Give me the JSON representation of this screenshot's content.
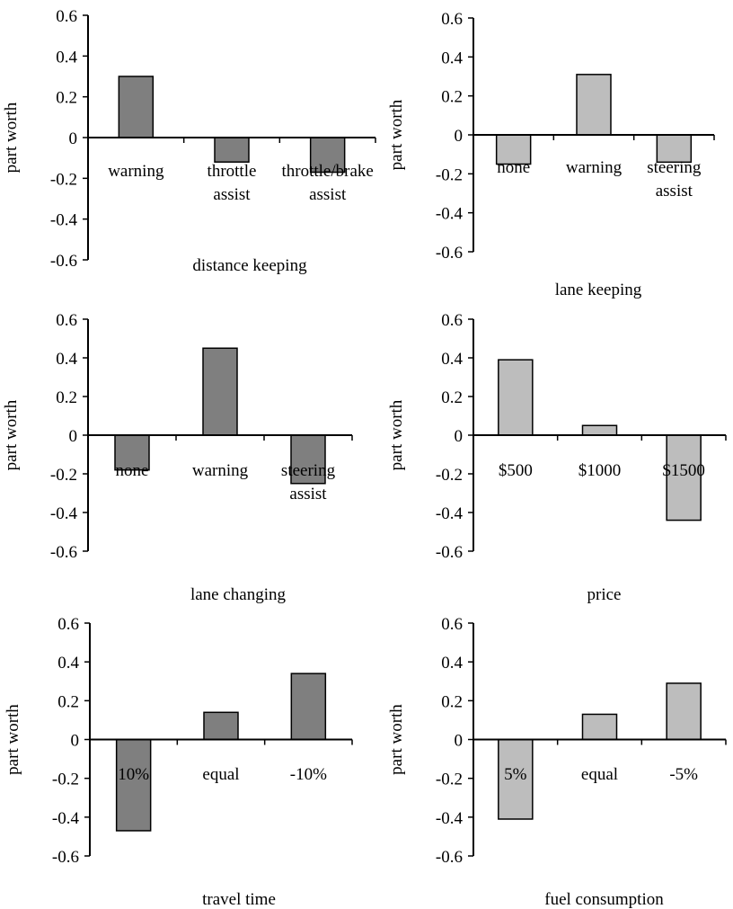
{
  "colors": {
    "bar_dark": "#7f7f7f",
    "bar_light": "#bdbdbd",
    "axis": "#000000"
  },
  "chart_data": [
    {
      "type": "bar",
      "title": "",
      "xlabel": "distance keeping",
      "ylabel": "part worth",
      "ylim": [
        -0.6,
        0.6
      ],
      "yticks": [
        "0.6",
        "0.4",
        "0.2",
        "0",
        "-0.2",
        "-0.4",
        "-0.6"
      ],
      "categories": [
        [
          "warning"
        ],
        [
          "throttle",
          "assist"
        ],
        [
          "throttle/brake",
          "assist"
        ]
      ],
      "values": [
        0.3,
        -0.12,
        -0.17
      ],
      "shade": "dark"
    },
    {
      "type": "bar",
      "title": "",
      "xlabel": "lane keeping",
      "ylabel": "part worth",
      "ylim": [
        -0.6,
        0.6
      ],
      "yticks": [
        "0.6",
        "0.4",
        "0.2",
        "0",
        "-0.2",
        "-0.4",
        "-0.6"
      ],
      "categories": [
        [
          "none"
        ],
        [
          "warning"
        ],
        [
          "steering",
          "assist"
        ]
      ],
      "values": [
        -0.15,
        0.31,
        -0.14
      ],
      "shade": "light"
    },
    {
      "type": "bar",
      "title": "",
      "xlabel": "lane changing",
      "ylabel": "part worth",
      "ylim": [
        -0.6,
        0.6
      ],
      "yticks": [
        "0.6",
        "0.4",
        "0.2",
        "0",
        "-0.2",
        "-0.4",
        "-0.6"
      ],
      "categories": [
        [
          "none"
        ],
        [
          "warning"
        ],
        [
          "steering",
          "assist"
        ]
      ],
      "values": [
        -0.18,
        0.45,
        -0.25
      ],
      "shade": "dark"
    },
    {
      "type": "bar",
      "title": "",
      "xlabel": "price",
      "ylabel": "part worth",
      "ylim": [
        -0.6,
        0.6
      ],
      "yticks": [
        "0.6",
        "0.4",
        "0.2",
        "0",
        "-0.2",
        "-0.4",
        "-0.6"
      ],
      "categories": [
        [
          "$500"
        ],
        [
          "$1000"
        ],
        [
          "$1500"
        ]
      ],
      "values": [
        0.39,
        0.05,
        -0.44
      ],
      "shade": "light"
    },
    {
      "type": "bar",
      "title": "",
      "xlabel": "travel time",
      "ylabel": "part worth",
      "ylim": [
        -0.6,
        0.6
      ],
      "yticks": [
        "0.6",
        "0.4",
        "0.2",
        "0",
        "-0.2",
        "-0.4",
        "-0.6"
      ],
      "categories": [
        [
          "10%"
        ],
        [
          "equal"
        ],
        [
          "-10%"
        ]
      ],
      "values": [
        -0.47,
        0.14,
        0.34
      ],
      "shade": "dark"
    },
    {
      "type": "bar",
      "title": "",
      "xlabel": "fuel consumption",
      "ylabel": "part worth",
      "ylim": [
        -0.6,
        0.6
      ],
      "yticks": [
        "0.6",
        "0.4",
        "0.2",
        "0",
        "-0.2",
        "-0.4",
        "-0.6"
      ],
      "categories": [
        [
          "5%"
        ],
        [
          "equal"
        ],
        [
          "-5%"
        ]
      ],
      "values": [
        -0.41,
        0.13,
        0.29
      ],
      "shade": "light"
    }
  ]
}
